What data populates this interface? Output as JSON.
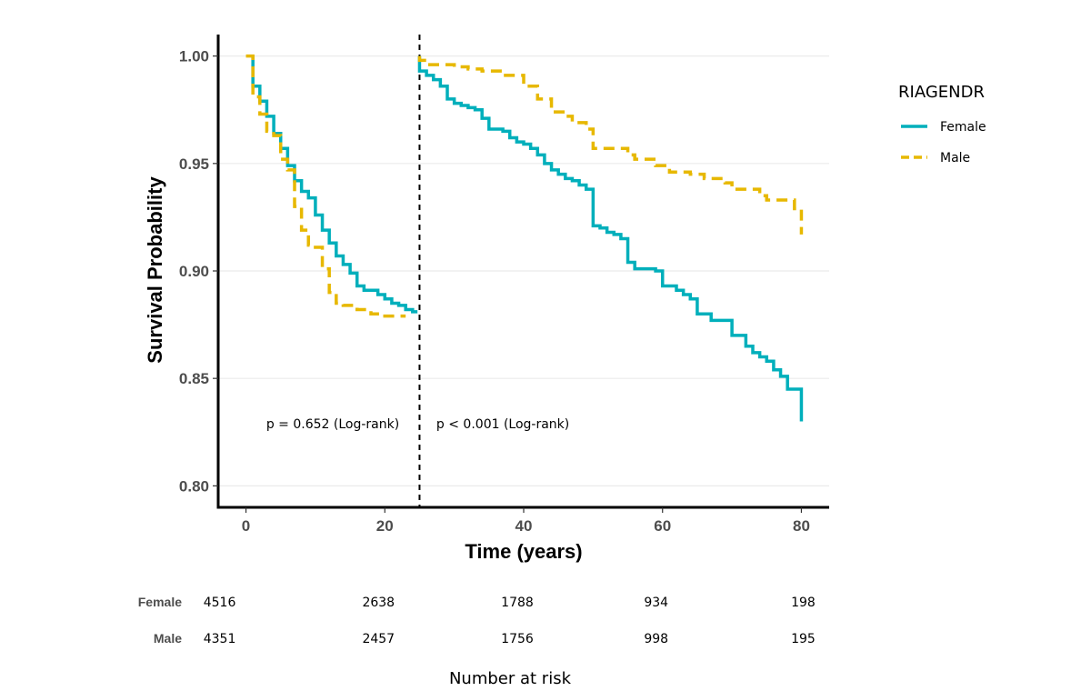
{
  "chart_data": {
    "type": "line",
    "step": true,
    "ylabel": "Survival Probability",
    "xlabel": "Time (years)",
    "xlim": [
      -4,
      84
    ],
    "ylim": [
      0.79,
      1.01
    ],
    "x_ticks": [
      0,
      20,
      40,
      60,
      80
    ],
    "y_ticks": [
      0.8,
      0.85,
      0.9,
      0.95,
      1.0
    ],
    "y_tick_labels": [
      "0.80",
      "0.85",
      "0.90",
      "0.95",
      "1.00"
    ],
    "grid": "horizontal",
    "cut_point": 25,
    "legend": {
      "title": "RIAGENDR",
      "position": "right",
      "entries": [
        "Female",
        "Male"
      ]
    },
    "annotations": [
      {
        "text": "p = 0.652 (Log-rank)",
        "x": 12.5,
        "y": 0.829
      },
      {
        "text": "p < 0.001 (Log-rank)",
        "x": 37,
        "y": 0.829
      }
    ],
    "series": [
      {
        "name": "Female",
        "color": "#00AFBB",
        "dash": "solid",
        "segments": [
          [
            [
              1,
              1.0
            ],
            [
              1,
              0.986
            ],
            [
              2,
              0.986
            ],
            [
              2,
              0.979
            ],
            [
              3,
              0.979
            ],
            [
              3,
              0.972
            ],
            [
              4,
              0.972
            ],
            [
              4,
              0.964
            ],
            [
              5,
              0.964
            ],
            [
              5,
              0.957
            ],
            [
              6,
              0.957
            ],
            [
              6,
              0.949
            ],
            [
              7,
              0.949
            ],
            [
              7,
              0.942
            ],
            [
              8,
              0.942
            ],
            [
              8,
              0.937
            ],
            [
              9,
              0.937
            ],
            [
              9,
              0.934
            ],
            [
              10,
              0.934
            ],
            [
              10,
              0.926
            ],
            [
              11,
              0.926
            ],
            [
              11,
              0.919
            ],
            [
              12,
              0.919
            ],
            [
              12,
              0.913
            ],
            [
              13,
              0.913
            ],
            [
              13,
              0.907
            ],
            [
              14,
              0.907
            ],
            [
              14,
              0.903
            ],
            [
              15,
              0.903
            ],
            [
              15,
              0.899
            ],
            [
              16,
              0.899
            ],
            [
              16,
              0.893
            ],
            [
              17,
              0.893
            ],
            [
              17,
              0.891
            ],
            [
              19,
              0.891
            ],
            [
              19,
              0.889
            ],
            [
              20,
              0.889
            ],
            [
              20,
              0.887
            ],
            [
              21,
              0.887
            ],
            [
              21,
              0.885
            ],
            [
              22,
              0.885
            ],
            [
              22,
              0.884
            ],
            [
              23,
              0.884
            ],
            [
              23,
              0.882
            ],
            [
              24,
              0.882
            ],
            [
              24,
              0.881
            ],
            [
              24.7,
              0.881
            ]
          ],
          [
            [
              25,
              1.0
            ],
            [
              25,
              0.993
            ],
            [
              26,
              0.993
            ],
            [
              26,
              0.991
            ],
            [
              27,
              0.991
            ],
            [
              27,
              0.989
            ],
            [
              28,
              0.989
            ],
            [
              28,
              0.986
            ],
            [
              29,
              0.986
            ],
            [
              29,
              0.98
            ],
            [
              30,
              0.98
            ],
            [
              30,
              0.978
            ],
            [
              31,
              0.978
            ],
            [
              31,
              0.977
            ],
            [
              32,
              0.977
            ],
            [
              32,
              0.976
            ],
            [
              33,
              0.976
            ],
            [
              33,
              0.975
            ],
            [
              34,
              0.975
            ],
            [
              34,
              0.971
            ],
            [
              35,
              0.971
            ],
            [
              35,
              0.966
            ],
            [
              37,
              0.966
            ],
            [
              37,
              0.965
            ],
            [
              38,
              0.965
            ],
            [
              38,
              0.962
            ],
            [
              39,
              0.962
            ],
            [
              39,
              0.96
            ],
            [
              40,
              0.96
            ],
            [
              40,
              0.959
            ],
            [
              41,
              0.959
            ],
            [
              41,
              0.957
            ],
            [
              42,
              0.957
            ],
            [
              42,
              0.954
            ],
            [
              43,
              0.954
            ],
            [
              43,
              0.95
            ],
            [
              44,
              0.95
            ],
            [
              44,
              0.947
            ],
            [
              45,
              0.947
            ],
            [
              45,
              0.945
            ],
            [
              46,
              0.945
            ],
            [
              46,
              0.943
            ],
            [
              47,
              0.943
            ],
            [
              47,
              0.942
            ],
            [
              48,
              0.942
            ],
            [
              48,
              0.94
            ],
            [
              49,
              0.94
            ],
            [
              49,
              0.938
            ],
            [
              50,
              0.938
            ],
            [
              50,
              0.921
            ],
            [
              51,
              0.921
            ],
            [
              51,
              0.92
            ],
            [
              52,
              0.92
            ],
            [
              52,
              0.918
            ],
            [
              53,
              0.918
            ],
            [
              53,
              0.917
            ],
            [
              54,
              0.917
            ],
            [
              54,
              0.915
            ],
            [
              55,
              0.915
            ],
            [
              55,
              0.904
            ],
            [
              56,
              0.904
            ],
            [
              56,
              0.901
            ],
            [
              59,
              0.901
            ],
            [
              59,
              0.9
            ],
            [
              60,
              0.9
            ],
            [
              60,
              0.893
            ],
            [
              62,
              0.893
            ],
            [
              62,
              0.891
            ],
            [
              63,
              0.891
            ],
            [
              63,
              0.889
            ],
            [
              64,
              0.889
            ],
            [
              64,
              0.887
            ],
            [
              65,
              0.887
            ],
            [
              65,
              0.88
            ],
            [
              67,
              0.88
            ],
            [
              67,
              0.877
            ],
            [
              70,
              0.877
            ],
            [
              70,
              0.87
            ],
            [
              72,
              0.87
            ],
            [
              72,
              0.865
            ],
            [
              73,
              0.865
            ],
            [
              73,
              0.862
            ],
            [
              74,
              0.862
            ],
            [
              74,
              0.86
            ],
            [
              75,
              0.86
            ],
            [
              75,
              0.858
            ],
            [
              76,
              0.858
            ],
            [
              76,
              0.854
            ],
            [
              77,
              0.854
            ],
            [
              77,
              0.851
            ],
            [
              78,
              0.851
            ],
            [
              78,
              0.845
            ],
            [
              80,
              0.845
            ],
            [
              80,
              0.83
            ]
          ]
        ]
      },
      {
        "name": "Male",
        "color": "#E7B800",
        "dash": "dashed",
        "segments": [
          [
            [
              0,
              1.0
            ],
            [
              1,
              1.0
            ],
            [
              1,
              0.981
            ],
            [
              2,
              0.981
            ],
            [
              2,
              0.973
            ],
            [
              3,
              0.973
            ],
            [
              3,
              0.965
            ],
            [
              4,
              0.965
            ],
            [
              4,
              0.963
            ],
            [
              5,
              0.963
            ],
            [
              5,
              0.952
            ],
            [
              6,
              0.952
            ],
            [
              6,
              0.947
            ],
            [
              7,
              0.947
            ],
            [
              7,
              0.93
            ],
            [
              8,
              0.93
            ],
            [
              8,
              0.919
            ],
            [
              9,
              0.919
            ],
            [
              9,
              0.912
            ],
            [
              10,
              0.912
            ],
            [
              10,
              0.911
            ],
            [
              11,
              0.911
            ],
            [
              11,
              0.901
            ],
            [
              12,
              0.901
            ],
            [
              12,
              0.89
            ],
            [
              13,
              0.89
            ],
            [
              13,
              0.885
            ],
            [
              14,
              0.885
            ],
            [
              14,
              0.884
            ],
            [
              16,
              0.884
            ],
            [
              16,
              0.882
            ],
            [
              18,
              0.882
            ],
            [
              18,
              0.88
            ],
            [
              20,
              0.88
            ],
            [
              20,
              0.879
            ],
            [
              23,
              0.879
            ]
          ],
          [
            [
              25,
              1.0
            ],
            [
              25,
              0.998
            ],
            [
              26,
              0.998
            ],
            [
              26,
              0.996
            ],
            [
              30,
              0.996
            ],
            [
              30,
              0.995
            ],
            [
              32,
              0.995
            ],
            [
              32,
              0.994
            ],
            [
              34,
              0.994
            ],
            [
              34,
              0.993
            ],
            [
              37,
              0.993
            ],
            [
              37,
              0.991
            ],
            [
              40,
              0.991
            ],
            [
              40,
              0.986
            ],
            [
              42,
              0.986
            ],
            [
              42,
              0.98
            ],
            [
              44,
              0.98
            ],
            [
              44,
              0.974
            ],
            [
              46,
              0.974
            ],
            [
              46,
              0.972
            ],
            [
              47,
              0.972
            ],
            [
              47,
              0.969
            ],
            [
              49,
              0.969
            ],
            [
              49,
              0.966
            ],
            [
              50,
              0.966
            ],
            [
              50,
              0.957
            ],
            [
              55,
              0.957
            ],
            [
              55,
              0.954
            ],
            [
              56,
              0.954
            ],
            [
              56,
              0.952
            ],
            [
              59,
              0.952
            ],
            [
              59,
              0.949
            ],
            [
              61,
              0.949
            ],
            [
              61,
              0.946
            ],
            [
              64,
              0.946
            ],
            [
              64,
              0.945
            ],
            [
              66,
              0.945
            ],
            [
              66,
              0.943
            ],
            [
              69,
              0.943
            ],
            [
              69,
              0.941
            ],
            [
              70,
              0.941
            ],
            [
              70,
              0.938
            ],
            [
              74,
              0.938
            ],
            [
              74,
              0.935
            ],
            [
              75,
              0.935
            ],
            [
              75,
              0.933
            ],
            [
              79,
              0.933
            ],
            [
              79,
              0.929
            ],
            [
              80,
              0.929
            ],
            [
              80,
              0.917
            ]
          ]
        ]
      }
    ],
    "risk_table": {
      "title": "Number at risk",
      "times": [
        0,
        20,
        40,
        60,
        80
      ],
      "rows": [
        {
          "group": "Female",
          "counts": [
            "4516",
            "2638",
            "1788",
            "934",
            "198"
          ]
        },
        {
          "group": "Male",
          "counts": [
            "4351",
            "2457",
            "1756",
            "998",
            "195"
          ]
        }
      ]
    }
  }
}
